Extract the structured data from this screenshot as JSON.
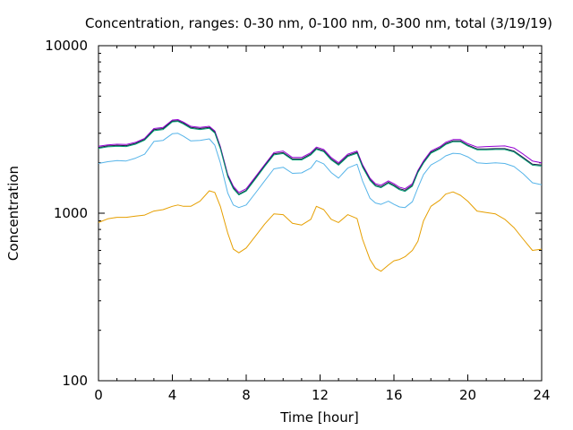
{
  "chart_data": {
    "type": "line",
    "title": "Concentration, ranges: 0-30 nm, 0-100 nm, 0-300 nm, total (3/19/19)",
    "xlabel": "Time [hour]",
    "ylabel": "Concentration",
    "xlim": [
      0,
      24
    ],
    "ylim": [
      100,
      10000
    ],
    "yscale": "log",
    "grid": false,
    "x_ticks": [
      0,
      4,
      8,
      12,
      16,
      20,
      24
    ],
    "x_tick_labels": [
      "0",
      "4",
      "8",
      "12",
      "16",
      "20",
      "24"
    ],
    "y_ticks": [
      100,
      1000,
      10000
    ],
    "y_tick_labels": [
      "100",
      "1000",
      "10000"
    ],
    "colors": {
      "0-30 nm": "#e69f00",
      "0-100 nm": "#56b4e9",
      "0-300 nm": "#009e73",
      "total": "#9400d3",
      "dark": "#1a1a40"
    },
    "x": [
      0,
      0.5,
      1,
      1.5,
      2,
      2.5,
      3,
      3.5,
      4,
      4.3,
      4.6,
      5,
      5.5,
      6,
      6.3,
      6.6,
      7,
      7.3,
      7.6,
      8,
      8.5,
      9,
      9.5,
      10,
      10.5,
      11,
      11.5,
      11.8,
      12.2,
      12.6,
      13,
      13.5,
      14,
      14.3,
      14.7,
      15,
      15.3,
      15.7,
      16,
      16.3,
      16.6,
      17,
      17.3,
      17.6,
      18,
      18.5,
      18.8,
      19.2,
      19.6,
      20,
      20.5,
      21,
      21.5,
      22,
      22.5,
      23,
      23.5,
      24
    ],
    "series": [
      {
        "values": [
          2510,
          2560,
          2580,
          2570,
          2650,
          2800,
          3200,
          3250,
          3600,
          3620,
          3500,
          3300,
          3250,
          3300,
          3100,
          2500,
          1700,
          1450,
          1330,
          1400,
          1650,
          1950,
          2300,
          2350,
          2150,
          2150,
          2300,
          2480,
          2400,
          2150,
          2000,
          2250,
          2350,
          1950,
          1620,
          1500,
          1470,
          1560,
          1500,
          1430,
          1400,
          1500,
          1800,
          2050,
          2350,
          2500,
          2650,
          2750,
          2750,
          2600,
          2480,
          2500,
          2510,
          2520,
          2450,
          2250,
          2050,
          2000
        ]
      },
      {
        "values": [
          2470,
          2520,
          2540,
          2530,
          2610,
          2760,
          3150,
          3200,
          3550,
          3570,
          3450,
          3250,
          3200,
          3250,
          3050,
          2460,
          1670,
          1420,
          1300,
          1370,
          1620,
          1920,
          2260,
          2300,
          2110,
          2110,
          2260,
          2440,
          2360,
          2110,
          1960,
          2210,
          2310,
          1910,
          1590,
          1470,
          1440,
          1530,
          1470,
          1400,
          1370,
          1470,
          1770,
          2010,
          2310,
          2460,
          2600,
          2700,
          2700,
          2550,
          2420,
          2420,
          2430,
          2430,
          2350,
          2150,
          1960,
          1940
        ]
      },
      {
        "values": [
          2440,
          2490,
          2510,
          2500,
          2580,
          2730,
          3110,
          3160,
          3510,
          3530,
          3410,
          3210,
          3160,
          3210,
          3010,
          2430,
          1650,
          1400,
          1285,
          1355,
          1600,
          1900,
          2230,
          2270,
          2080,
          2080,
          2230,
          2410,
          2330,
          2080,
          1935,
          2180,
          2280,
          1885,
          1570,
          1450,
          1420,
          1510,
          1450,
          1380,
          1350,
          1450,
          1750,
          1990,
          2280,
          2430,
          2570,
          2670,
          2670,
          2520,
          2390,
          2390,
          2400,
          2400,
          2320,
          2120,
          1935,
          1910
        ]
      },
      {
        "values": [
          1980,
          2030,
          2060,
          2050,
          2130,
          2250,
          2680,
          2720,
          2980,
          3000,
          2880,
          2700,
          2720,
          2780,
          2550,
          2000,
          1320,
          1120,
          1080,
          1120,
          1320,
          1560,
          1840,
          1880,
          1730,
          1740,
          1860,
          2060,
          1970,
          1750,
          1620,
          1860,
          1960,
          1560,
          1230,
          1150,
          1130,
          1180,
          1130,
          1090,
          1080,
          1170,
          1420,
          1700,
          1940,
          2080,
          2200,
          2280,
          2260,
          2170,
          2000,
          1980,
          2000,
          1980,
          1900,
          1720,
          1520,
          1480
        ]
      },
      {
        "values": [
          880,
          925,
          945,
          945,
          960,
          975,
          1030,
          1050,
          1100,
          1120,
          1100,
          1100,
          1180,
          1360,
          1330,
          1100,
          760,
          610,
          580,
          620,
          730,
          860,
          990,
          980,
          870,
          850,
          920,
          1100,
          1050,
          920,
          880,
          980,
          930,
          700,
          530,
          470,
          450,
          490,
          520,
          530,
          550,
          600,
          680,
          900,
          1100,
          1200,
          1300,
          1340,
          1280,
          1180,
          1030,
          1010,
          990,
          920,
          820,
          700,
          600,
          610
        ]
      }
    ]
  }
}
